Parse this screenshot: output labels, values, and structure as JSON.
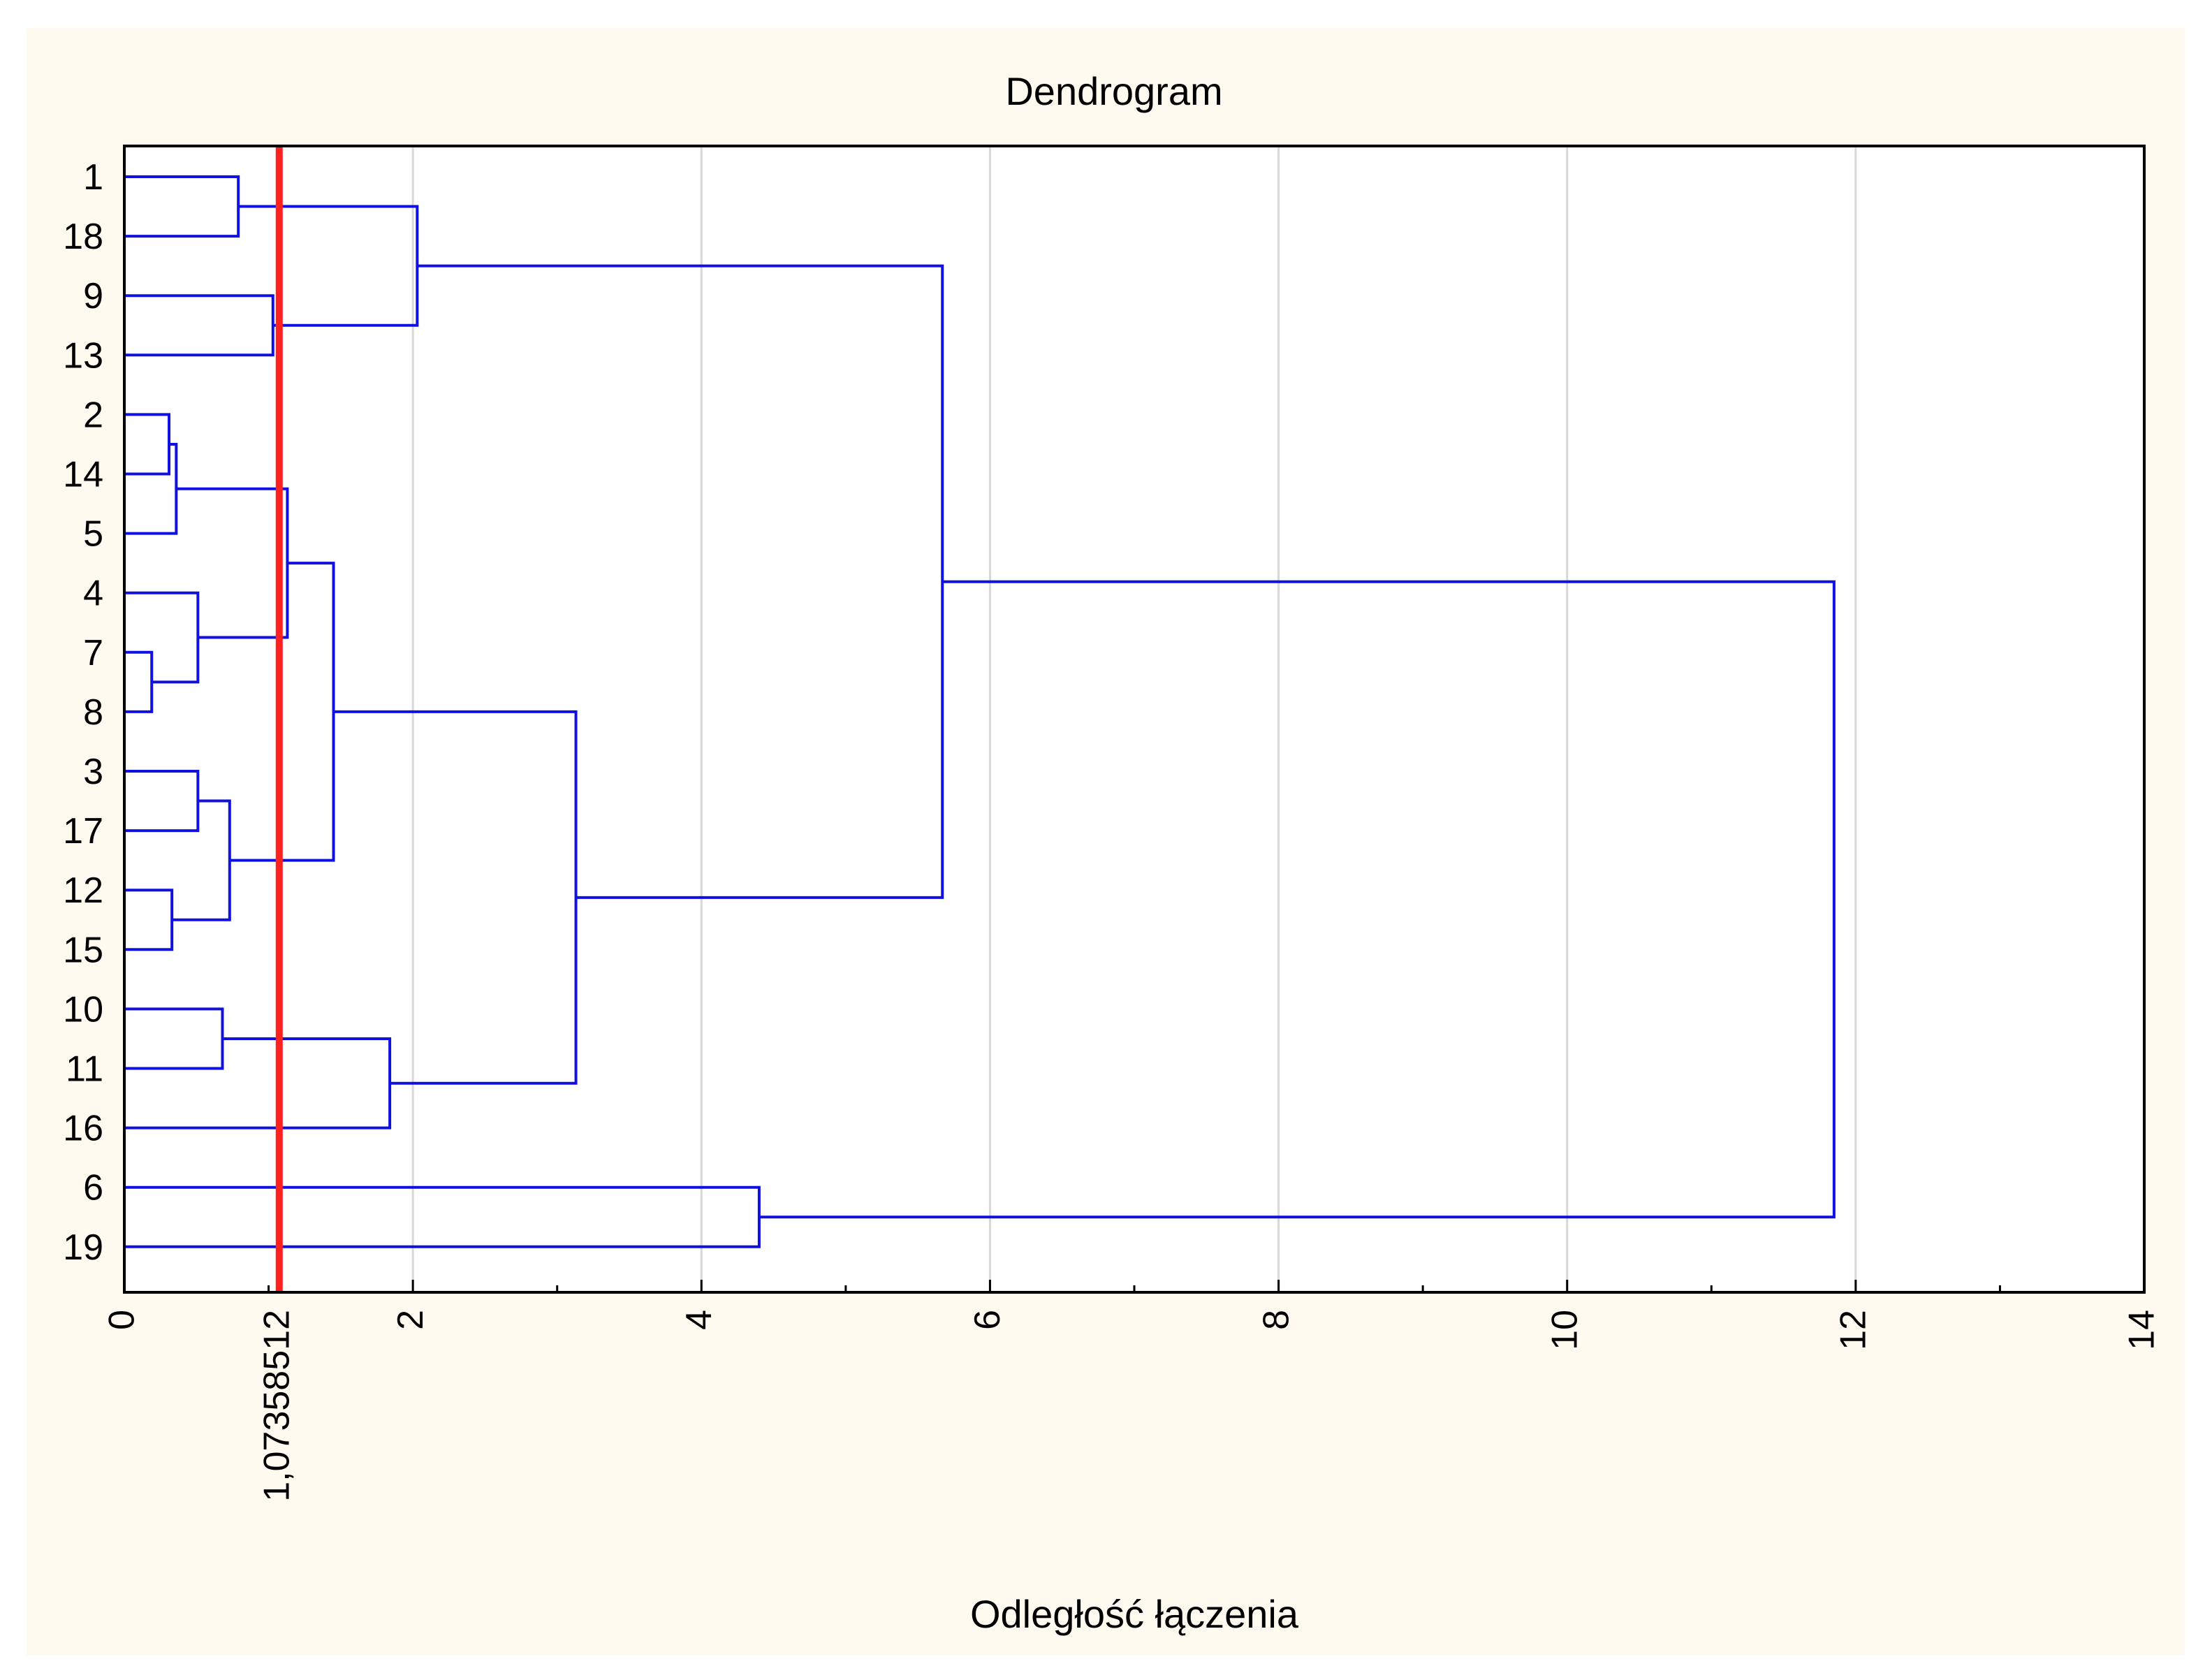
{
  "chart_data": {
    "type": "dendrogram",
    "orientation": "horizontal",
    "title": "Dendrogram",
    "xlabel": "Odległość łączenia",
    "xlim": [
      0,
      14
    ],
    "x_ticks": [
      0,
      2,
      4,
      6,
      8,
      10,
      12,
      14
    ],
    "x_tick_labels": [
      "0",
      "2",
      "4",
      "6",
      "8",
      "10",
      "12",
      "14"
    ],
    "gridlines": "vertical",
    "leaf_order": [
      "1",
      "18",
      "9",
      "13",
      "2",
      "14",
      "5",
      "4",
      "7",
      "8",
      "3",
      "17",
      "12",
      "15",
      "10",
      "11",
      "16",
      "6",
      "19"
    ],
    "merges": [
      {
        "a": "8",
        "b": "7",
        "height": 0.19
      },
      {
        "a": "2",
        "b": "14",
        "height": 0.31
      },
      {
        "a": "12",
        "b": "15",
        "height": 0.33
      },
      {
        "a": "m1",
        "b": "5",
        "height": 0.36
      },
      {
        "a": "4",
        "b": "m0",
        "height": 0.51
      },
      {
        "a": "3",
        "b": "17",
        "height": 0.51
      },
      {
        "a": "10",
        "b": "11",
        "height": 0.68
      },
      {
        "a": "m5",
        "b": "m2",
        "height": 0.73
      },
      {
        "a": "1",
        "b": "18",
        "height": 0.79
      },
      {
        "a": "9",
        "b": "13",
        "height": 1.03
      },
      {
        "a": "m3",
        "b": "m4",
        "height": 1.13
      },
      {
        "a": "m10",
        "b": "m7",
        "height": 1.45
      },
      {
        "a": "m6",
        "b": "16",
        "height": 1.84
      },
      {
        "a": "m8",
        "b": "m9",
        "height": 2.03
      },
      {
        "a": "m11",
        "b": "m12",
        "height": 3.13
      },
      {
        "a": "6",
        "b": "19",
        "height": 4.4
      },
      {
        "a": "m13",
        "b": "m14",
        "height": 5.67
      },
      {
        "a": "m16",
        "b": "m15",
        "height": 11.85
      }
    ],
    "cut_line": {
      "value": 1.07358512,
      "label": "1,07358512",
      "color": "#ff2020"
    },
    "line_color": "#1010e0",
    "background": "#fffaf0"
  }
}
